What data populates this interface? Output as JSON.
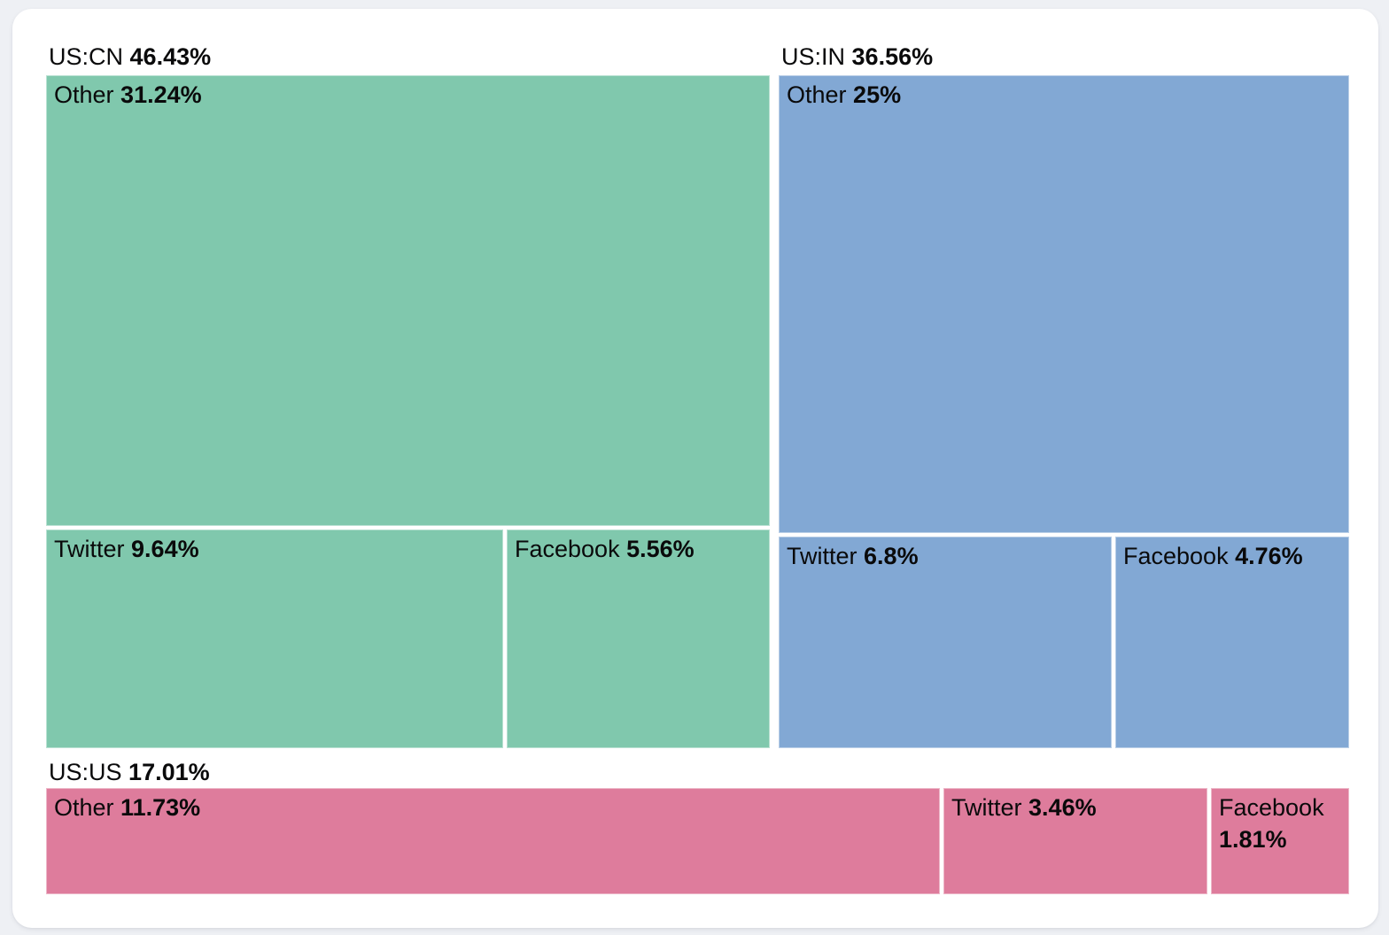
{
  "page": {
    "background_color": "#eef0f4"
  },
  "card": {
    "background_color": "#ffffff"
  },
  "chart_data": {
    "type": "treemap",
    "legend_position": "none",
    "label_position": "top-left",
    "layout_hint": "US:CN and US:IN side by side on top row (area-proportional widths); US:US full-width bottom row; each group has a header line above its rectangle",
    "groups": [
      {
        "label": "US:CN",
        "value": 46.43,
        "value_label": "46.43%",
        "color": "#80c8ad",
        "children": [
          {
            "label": "Other",
            "value": 31.24,
            "value_label": "31.24%"
          },
          {
            "label": "Twitter",
            "value": 9.64,
            "value_label": "9.64%"
          },
          {
            "label": "Facebook",
            "value": 5.56,
            "value_label": "5.56%"
          }
        ]
      },
      {
        "label": "US:IN",
        "value": 36.56,
        "value_label": "36.56%",
        "color": "#82a8d4",
        "children": [
          {
            "label": "Other",
            "value": 25,
            "value_label": "25%"
          },
          {
            "label": "Twitter",
            "value": 6.8,
            "value_label": "6.8%"
          },
          {
            "label": "Facebook",
            "value": 4.76,
            "value_label": "4.76%"
          }
        ]
      },
      {
        "label": "US:US",
        "value": 17.01,
        "value_label": "17.01%",
        "color": "#de7c9c",
        "children": [
          {
            "label": "Other",
            "value": 11.73,
            "value_label": "11.73%"
          },
          {
            "label": "Twitter",
            "value": 3.46,
            "value_label": "3.46%"
          },
          {
            "label": "Facebook",
            "value": 1.81,
            "value_label": "1.81%"
          }
        ]
      }
    ]
  }
}
